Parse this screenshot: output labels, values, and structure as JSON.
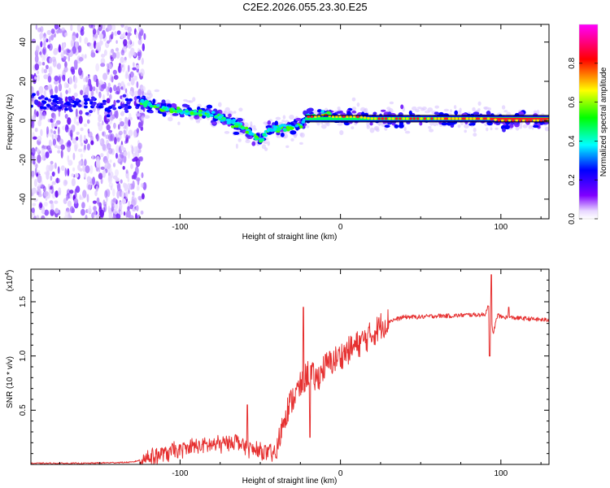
{
  "title": "C2E2.2026.055.23.30.E25",
  "chart_data": [
    {
      "type": "heatmap",
      "title": "C2E2.2026.055.23.30.E25",
      "xlabel": "Height of straight line (km)",
      "ylabel": "Frequency (Hz)",
      "xlim": [
        -193,
        130
      ],
      "ylim": [
        -50,
        49
      ],
      "x_ticks": [
        -100,
        0,
        100
      ],
      "x_tick_labels": [
        "-100",
        "0",
        "100"
      ],
      "y_ticks": [
        -40,
        -20,
        0,
        20,
        40
      ],
      "y_tick_labels": [
        "-40",
        "-20",
        "0",
        "20",
        "40"
      ],
      "noise_region_x": [
        -193,
        -122
      ],
      "ridge": {
        "x": [
          -193,
          -175,
          -160,
          -140,
          -125,
          -110,
          -100,
          -90,
          -80,
          -70,
          -60,
          -55,
          -50,
          -45,
          -40,
          -35,
          -30,
          -25,
          -20,
          -15,
          -10,
          -5,
          0,
          10,
          20,
          30,
          40,
          60,
          80,
          88,
          92,
          100,
          130
        ],
        "y": [
          10,
          9,
          8,
          7,
          10,
          6,
          5,
          4,
          3,
          0,
          -4,
          -7,
          -10,
          -5,
          -4,
          -4,
          -3,
          -2,
          2,
          2,
          3,
          2,
          2,
          2,
          1,
          1,
          1,
          1,
          1,
          1,
          1,
          0,
          0
        ]
      },
      "colorbar": {
        "label": "Normalized spectral amplitude",
        "range": [
          0,
          1
        ],
        "ticks": [
          0.0,
          0.2,
          0.4,
          0.6,
          0.8
        ],
        "tick_labels": [
          "0.0",
          "0.2",
          "0.4",
          "0.6",
          "0.8"
        ],
        "colors": [
          "#ffffff",
          "#8000ff",
          "#0000ff",
          "#00ffff",
          "#00ff00",
          "#ffff00",
          "#ff0000",
          "#ff00ff"
        ]
      }
    },
    {
      "type": "line",
      "xlabel": "Height of straight line (km)",
      "ylabel": "SNR (10 * v/v)",
      "multiplier": "(x10",
      "multiplier_exp": "4",
      "xlim": [
        -193,
        130
      ],
      "ylim": [
        0,
        1.8
      ],
      "x_ticks": [
        -100,
        0,
        100
      ],
      "x_tick_labels": [
        "-100",
        "0",
        "100"
      ],
      "y_ticks": [
        0.5,
        1.0,
        1.5
      ],
      "y_tick_labels": [
        "0.5",
        "1.0",
        "1.5"
      ],
      "line_color": "#e63030",
      "series": [
        {
          "name": "SNR",
          "x": [
            -193,
            -160,
            -130,
            -125,
            -120,
            -110,
            -100,
            -90,
            -80,
            -70,
            -65,
            -60,
            -55,
            -50,
            -45,
            -40,
            -35,
            -30,
            -25,
            -20,
            -15,
            -10,
            -5,
            0,
            5,
            10,
            15,
            20,
            25,
            30,
            40,
            50,
            60,
            70,
            80,
            85,
            90,
            93,
            95,
            98,
            100,
            110,
            120,
            130
          ],
          "y": [
            0.01,
            0.01,
            0.02,
            0.04,
            0.07,
            0.1,
            0.13,
            0.17,
            0.18,
            0.2,
            0.22,
            0.17,
            0.13,
            0.12,
            0.1,
            0.1,
            0.45,
            0.6,
            0.72,
            0.85,
            0.78,
            0.9,
            0.95,
            1.0,
            1.05,
            1.1,
            1.15,
            1.2,
            1.28,
            1.32,
            1.36,
            1.36,
            1.37,
            1.37,
            1.38,
            1.38,
            1.38,
            1.5,
            1.2,
            1.38,
            1.36,
            1.35,
            1.34,
            1.33
          ]
        }
      ],
      "spikes": [
        {
          "x": -58,
          "y": 0.55
        },
        {
          "x": -23,
          "y": 1.45
        },
        {
          "x": -19,
          "y": 0.25
        },
        {
          "x": 94,
          "y": 1.75
        },
        {
          "x": 93,
          "y": 1.0
        },
        {
          "x": 105,
          "y": 1.45
        }
      ]
    }
  ]
}
